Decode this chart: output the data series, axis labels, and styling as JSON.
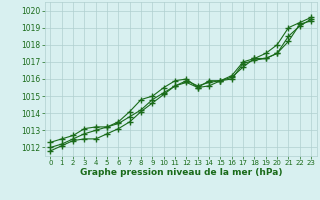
{
  "xlabel": "Graphe pression niveau de la mer (hPa)",
  "x": [
    0,
    1,
    2,
    3,
    4,
    5,
    6,
    7,
    8,
    9,
    10,
    11,
    12,
    13,
    14,
    15,
    16,
    17,
    18,
    19,
    20,
    21,
    22,
    23
  ],
  "line1": [
    1011.8,
    1012.1,
    1012.4,
    1012.5,
    1012.5,
    1012.8,
    1013.1,
    1013.5,
    1014.1,
    1014.6,
    1015.1,
    1015.6,
    1015.8,
    1015.5,
    1015.9,
    1015.9,
    1016.1,
    1016.7,
    1017.2,
    1017.2,
    1017.5,
    1018.5,
    1019.1,
    1019.5
  ],
  "line2": [
    1012.0,
    1012.2,
    1012.5,
    1012.8,
    1013.0,
    1013.2,
    1013.4,
    1013.8,
    1014.2,
    1014.8,
    1015.2,
    1015.6,
    1015.9,
    1015.6,
    1015.8,
    1015.9,
    1016.0,
    1016.9,
    1017.1,
    1017.2,
    1017.5,
    1018.2,
    1019.2,
    1019.4
  ],
  "line3": [
    1012.3,
    1012.5,
    1012.7,
    1013.1,
    1013.2,
    1013.2,
    1013.5,
    1014.1,
    1014.8,
    1015.0,
    1015.5,
    1015.9,
    1016.0,
    1015.5,
    1015.6,
    1015.9,
    1016.2,
    1017.0,
    1017.2,
    1017.5,
    1018.0,
    1019.0,
    1019.3,
    1019.6
  ],
  "ylim": [
    1011.5,
    1020.5
  ],
  "yticks": [
    1012,
    1013,
    1014,
    1015,
    1016,
    1017,
    1018,
    1019,
    1020
  ],
  "line_color": "#1a6b1a",
  "bg_color": "#d8f0f0",
  "grid_color": "#b0d0d0",
  "label_color": "#1a6b1a",
  "marker": "+",
  "markersize": 4,
  "markerwidth": 1.0,
  "linewidth": 0.8
}
